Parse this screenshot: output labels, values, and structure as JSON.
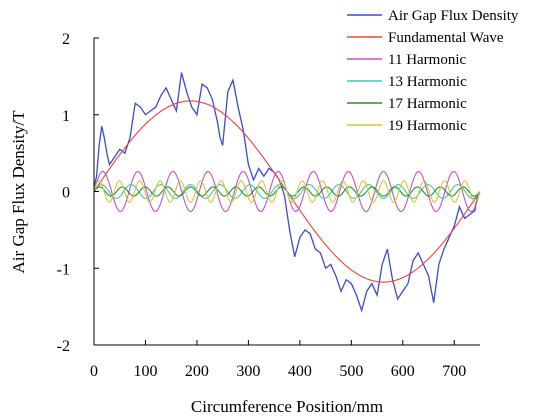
{
  "chart_data": {
    "type": "line",
    "title": "",
    "xlabel": "Circumference Position/mm",
    "ylabel": "Air Gap Flux Density/T",
    "xlim": [
      0,
      750
    ],
    "ylim": [
      -2,
      2
    ],
    "x_ticks": [
      "0",
      "100",
      "200",
      "300",
      "400",
      "500",
      "600",
      "700"
    ],
    "x_tick_values": [
      0,
      100,
      200,
      300,
      400,
      500,
      600,
      700
    ],
    "y_ticks": [
      "2",
      "1",
      "0",
      "-1",
      "-2"
    ],
    "y_tick_values": [
      2,
      1,
      0,
      -1,
      -2
    ],
    "grid": false,
    "legend_position": "top-right",
    "series": [
      {
        "name": "Air Gap Flux Density",
        "color": "#3b4bd0",
        "x": [
          0,
          5,
          10,
          15,
          20,
          25,
          30,
          40,
          50,
          60,
          70,
          80,
          90,
          100,
          110,
          120,
          130,
          140,
          150,
          160,
          170,
          180,
          190,
          200,
          210,
          220,
          230,
          240,
          245,
          250,
          260,
          270,
          280,
          290,
          300,
          310,
          320,
          330,
          340,
          350,
          360,
          370,
          380,
          390,
          400,
          410,
          420,
          430,
          440,
          450,
          460,
          470,
          480,
          490,
          500,
          510,
          520,
          530,
          540,
          550,
          560,
          570,
          580,
          590,
          600,
          610,
          620,
          630,
          640,
          650,
          660,
          670,
          680,
          690,
          700,
          710,
          720,
          730,
          740,
          745
        ],
        "y": [
          0.05,
          0.2,
          0.6,
          0.85,
          0.7,
          0.5,
          0.35,
          0.45,
          0.55,
          0.5,
          0.7,
          1.15,
          1.1,
          1.0,
          1.05,
          1.1,
          1.25,
          1.35,
          1.2,
          1.05,
          1.55,
          1.3,
          1.1,
          1.0,
          1.4,
          1.35,
          1.2,
          0.9,
          0.7,
          0.6,
          1.3,
          1.45,
          1.1,
          0.8,
          0.35,
          0.15,
          0.3,
          0.2,
          0.3,
          0.25,
          0.15,
          -0.05,
          -0.5,
          -0.85,
          -0.6,
          -0.5,
          -0.55,
          -0.75,
          -0.8,
          -1.0,
          -0.95,
          -1.1,
          -1.3,
          -1.15,
          -1.2,
          -1.35,
          -1.55,
          -1.3,
          -1.2,
          -1.35,
          -0.95,
          -0.75,
          -1.15,
          -1.4,
          -1.3,
          -1.2,
          -0.9,
          -0.8,
          -0.95,
          -1.1,
          -1.45,
          -0.95,
          -0.75,
          -0.6,
          -0.45,
          -0.2,
          -0.35,
          -0.3,
          -0.25,
          -0.05
        ]
      },
      {
        "name": "Fundamental Wave",
        "color": "#e8453c",
        "amplitude": 1.18,
        "harmonic_order": 1,
        "period_mm": 750
      },
      {
        "name": "11 Harmonic",
        "color": "#c84fc6",
        "amplitude": 0.26,
        "harmonic_order": 11,
        "period_mm": 750
      },
      {
        "name": "13 Harmonic",
        "color": "#3fc9b0",
        "amplitude": 0.09,
        "harmonic_order": 13,
        "period_mm": 750
      },
      {
        "name": "17 Harmonic",
        "color": "#2f8a2f",
        "amplitude": 0.06,
        "harmonic_order": 17,
        "period_mm": 750
      },
      {
        "name": "19 Harmonic",
        "color": "#d4c83a",
        "amplitude": 0.14,
        "harmonic_order": 19,
        "period_mm": 750
      }
    ]
  }
}
